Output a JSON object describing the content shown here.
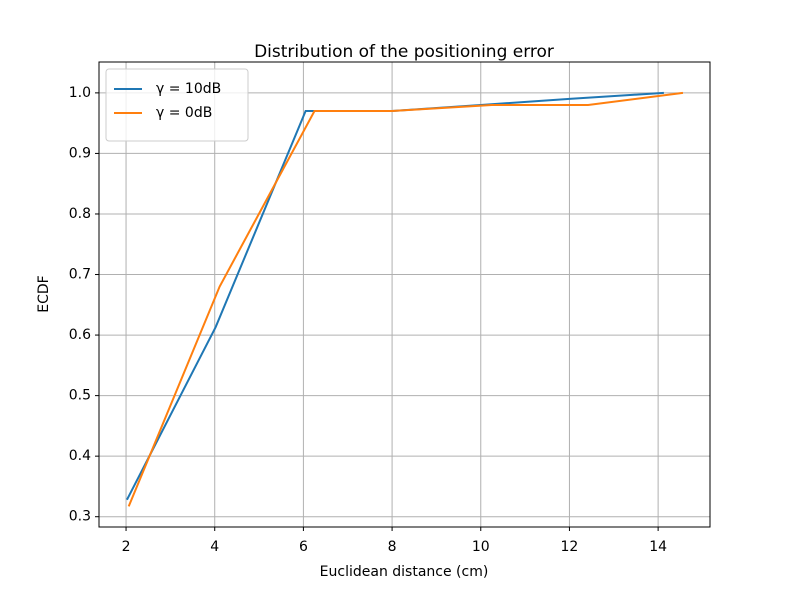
{
  "chart_data": {
    "type": "line",
    "title": "Distribution of the positioning error",
    "x_label": "Euclidean distance (cm)",
    "y_label": "ECDF",
    "xlim": [
      1.39,
      15.17
    ],
    "ylim": [
      0.283,
      1.051
    ],
    "xticks": [
      2,
      4,
      6,
      8,
      10,
      12,
      14
    ],
    "yticks": [
      {
        "value": 0.3,
        "label": "0.3"
      },
      {
        "value": 0.4,
        "label": "0.4"
      },
      {
        "value": 0.5,
        "label": "0.5"
      },
      {
        "value": 0.6,
        "label": "0.6"
      },
      {
        "value": 0.7,
        "label": "0.7"
      },
      {
        "value": 0.8,
        "label": "0.8"
      },
      {
        "value": 0.9,
        "label": "0.9"
      },
      {
        "value": 1.0,
        "label": "1.0"
      }
    ],
    "grid": true,
    "legend": "upper left",
    "series": [
      {
        "name": "γ = 10dB",
        "color": "#1f77b4",
        "x": [
          2.02,
          4.02,
          6.05,
          6.2,
          8.0,
          10.0,
          12.0,
          14.13
        ],
        "values": [
          0.328,
          0.613,
          0.97,
          0.97,
          0.97,
          0.98,
          0.99,
          1.0
        ]
      },
      {
        "name": "γ = 0dB",
        "color": "#ff7f0e",
        "x": [
          2.06,
          4.11,
          6.25,
          8.0,
          10.25,
          12.42,
          14.56
        ],
        "values": [
          0.317,
          0.68,
          0.97,
          0.97,
          0.98,
          0.98,
          1.0
        ]
      }
    ]
  }
}
